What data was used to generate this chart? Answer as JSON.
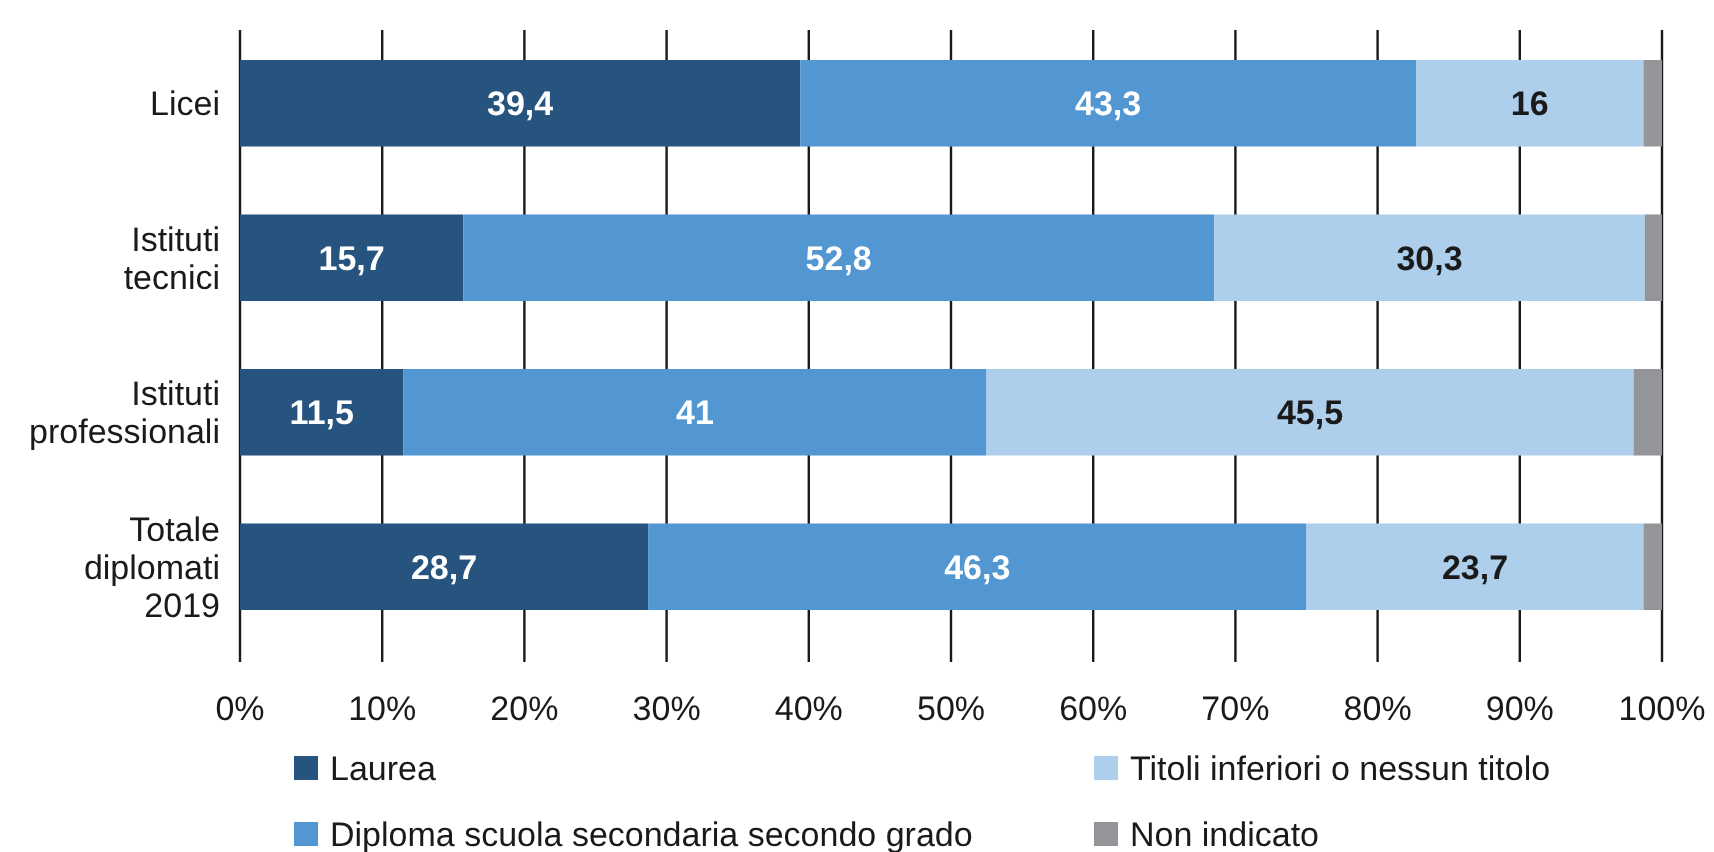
{
  "chart_data": {
    "type": "bar",
    "orientation": "horizontal",
    "stacked": true,
    "categories": [
      "Licei",
      "Istituti tecnici",
      "Istituti professionali",
      "Totale diplomati 2019"
    ],
    "series": [
      {
        "name": "Laurea",
        "color": "#27537f",
        "values": [
          39.4,
          15.7,
          11.5,
          28.7
        ],
        "value_labels": [
          "39,4",
          "15,7",
          "11,5",
          "28,7"
        ]
      },
      {
        "name": "Diploma scuola secondaria secondo grado",
        "color": "#5297d2",
        "values": [
          43.3,
          52.8,
          41,
          46.3
        ],
        "value_labels": [
          "43,3",
          "52,8",
          "41",
          "46,3"
        ]
      },
      {
        "name": "Titoli inferiori o nessun titolo",
        "color": "#aecfeb",
        "values": [
          16,
          30.3,
          45.5,
          23.7
        ],
        "value_labels": [
          "16",
          "30,3",
          "45,5",
          "23,7"
        ]
      },
      {
        "name": "Non indicato",
        "color": "#939598",
        "values": [
          1.3,
          1.2,
          2.0,
          1.3
        ]
      }
    ],
    "xlim": [
      0,
      100
    ],
    "xticks": [
      {
        "value": 0,
        "label": "0%"
      },
      {
        "value": 10,
        "label": "10%"
      },
      {
        "value": 20,
        "label": "20%"
      },
      {
        "value": 30,
        "label": "30%"
      },
      {
        "value": 40,
        "label": "40%"
      },
      {
        "value": 50,
        "label": "50%"
      },
      {
        "value": 60,
        "label": "60%"
      },
      {
        "value": 70,
        "label": "70%"
      },
      {
        "value": 80,
        "label": "80%"
      },
      {
        "value": 90,
        "label": "90%"
      },
      {
        "value": 100,
        "label": "100%"
      }
    ],
    "grid": "x",
    "legend": "bottom"
  }
}
